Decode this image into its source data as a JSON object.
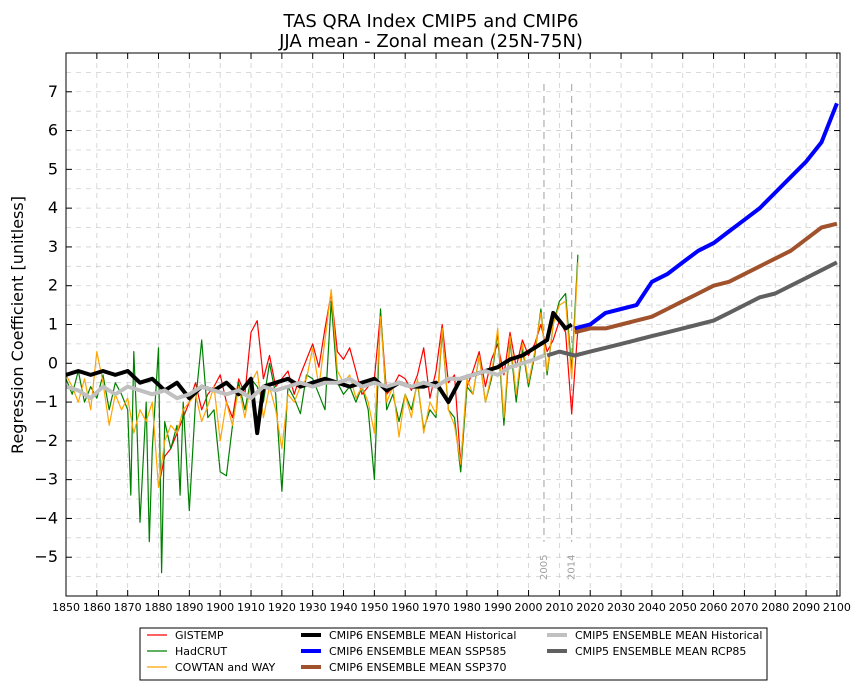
{
  "chart_data": {
    "type": "line",
    "title": "TAS QRA Index CMIP5 and CMIP6",
    "subtitle": "JJA mean - Zonal mean (25N-75N)",
    "xlabel": "",
    "ylabel": "Regression Coefficient [unitless]",
    "xlim": [
      1850,
      2101
    ],
    "ylim": [
      -6,
      8
    ],
    "grid": true,
    "legend_position": "bottom-center",
    "xticks": [
      "1850",
      "1860",
      "1870",
      "1880",
      "1890",
      "1900",
      "1910",
      "1920",
      "1930",
      "1940",
      "1950",
      "1960",
      "1970",
      "1980",
      "1990",
      "2000",
      "2010",
      "2020",
      "2030",
      "2040",
      "2050",
      "2060",
      "2070",
      "2080",
      "2090",
      "2100"
    ],
    "yticks": [
      "−5",
      "−4",
      "−3",
      "−2",
      "−1",
      "0",
      "1",
      "2",
      "3",
      "4",
      "5",
      "6",
      "7"
    ],
    "annotations": [
      {
        "x": 2005,
        "label": "2005"
      },
      {
        "x": 2014,
        "label": "2014"
      }
    ],
    "series": [
      {
        "name": "GISTEMP",
        "color": "#ff0000",
        "width": 1.2,
        "x": [
          1880,
          1882,
          1884,
          1886,
          1888,
          1890,
          1892,
          1894,
          1896,
          1898,
          1900,
          1902,
          1904,
          1906,
          1908,
          1910,
          1912,
          1914,
          1916,
          1918,
          1920,
          1922,
          1924,
          1926,
          1928,
          1930,
          1932,
          1934,
          1936,
          1938,
          1940,
          1942,
          1944,
          1946,
          1948,
          1950,
          1952,
          1954,
          1956,
          1958,
          1960,
          1962,
          1964,
          1966,
          1968,
          1970,
          1972,
          1974,
          1976,
          1978,
          1980,
          1982,
          1984,
          1986,
          1988,
          1990,
          1992,
          1994,
          1996,
          1998,
          2000,
          2002,
          2004,
          2006,
          2008,
          2010,
          2012,
          2014,
          2016
        ],
        "y": [
          -3.2,
          -2.4,
          -2.2,
          -1.8,
          -1.4,
          -1.0,
          -0.5,
          -1.2,
          -0.8,
          -0.6,
          -0.3,
          -1.0,
          -1.4,
          -0.4,
          -0.8,
          0.8,
          1.1,
          -0.4,
          0.2,
          -0.6,
          -0.4,
          -0.2,
          -0.8,
          -0.3,
          0.1,
          0.5,
          -0.1,
          0.9,
          1.8,
          0.3,
          0.1,
          0.4,
          -0.2,
          -0.8,
          -0.6,
          -0.4,
          1.3,
          -0.8,
          -0.6,
          -0.3,
          -0.4,
          -0.7,
          -0.3,
          0.4,
          -0.9,
          -0.2,
          1.0,
          -0.5,
          -0.3,
          -2.6,
          -0.6,
          -0.2,
          0.3,
          -0.6,
          0.1,
          0.5,
          -0.3,
          0.8,
          -0.1,
          0.6,
          0.2,
          0.5,
          1.0,
          0.3,
          0.6,
          1.1,
          0.8,
          -1.3,
          0.9
        ]
      },
      {
        "name": "HadCRUT",
        "color": "#008000",
        "width": 1.2,
        "x": [
          1850,
          1852,
          1854,
          1856,
          1858,
          1860,
          1862,
          1864,
          1866,
          1868,
          1870,
          1871,
          1872,
          1873,
          1874,
          1876,
          1877,
          1878,
          1880,
          1881,
          1882,
          1884,
          1886,
          1887,
          1888,
          1890,
          1892,
          1894,
          1896,
          1898,
          1900,
          1902,
          1904,
          1906,
          1908,
          1910,
          1912,
          1914,
          1916,
          1918,
          1920,
          1922,
          1924,
          1926,
          1928,
          1930,
          1932,
          1934,
          1936,
          1938,
          1940,
          1942,
          1944,
          1946,
          1948,
          1950,
          1952,
          1954,
          1956,
          1958,
          1960,
          1962,
          1964,
          1966,
          1968,
          1970,
          1972,
          1974,
          1976,
          1978,
          1980,
          1982,
          1984,
          1986,
          1988,
          1990,
          1992,
          1994,
          1996,
          1998,
          2000,
          2002,
          2004,
          2006,
          2008,
          2010,
          2012,
          2014,
          2016
        ],
        "y": [
          -0.4,
          -0.8,
          -0.2,
          -1.0,
          -0.6,
          -0.9,
          -0.3,
          -1.2,
          -0.5,
          -0.8,
          -1.2,
          -3.4,
          0.3,
          -1.6,
          -4.1,
          -1.0,
          -4.6,
          -2.2,
          0.4,
          -5.4,
          -1.5,
          -2.2,
          -1.6,
          -3.4,
          -1.0,
          -3.8,
          -1.0,
          0.6,
          -1.4,
          -1.2,
          -2.8,
          -2.9,
          -1.6,
          -0.5,
          -1.2,
          -0.4,
          -0.6,
          -1.0,
          0.0,
          -0.8,
          -3.3,
          -0.6,
          -0.9,
          -1.3,
          -0.3,
          -0.4,
          -0.8,
          -1.2,
          1.6,
          -0.5,
          -0.8,
          -0.6,
          -1.0,
          -0.6,
          -1.2,
          -3.0,
          1.4,
          -1.2,
          -0.8,
          -1.5,
          -0.8,
          -1.2,
          -0.5,
          -1.7,
          -1.2,
          -1.4,
          0.8,
          -1.2,
          -1.4,
          -2.8,
          -0.6,
          -0.8,
          0.2,
          -1.0,
          -0.4,
          0.8,
          -1.6,
          0.6,
          -1.0,
          0.4,
          -0.6,
          0.2,
          1.4,
          -0.3,
          1.0,
          1.6,
          1.8,
          -0.2,
          2.8
        ]
      },
      {
        "name": "COWTAN and WAY",
        "color": "#ffa500",
        "width": 1.2,
        "x": [
          1850,
          1852,
          1854,
          1856,
          1858,
          1860,
          1862,
          1864,
          1866,
          1868,
          1870,
          1872,
          1874,
          1876,
          1878,
          1880,
          1882,
          1884,
          1886,
          1888,
          1890,
          1892,
          1894,
          1896,
          1898,
          1900,
          1902,
          1904,
          1906,
          1908,
          1910,
          1912,
          1914,
          1916,
          1918,
          1920,
          1922,
          1924,
          1926,
          1928,
          1930,
          1932,
          1934,
          1936,
          1938,
          1940,
          1942,
          1944,
          1946,
          1948,
          1950,
          1952,
          1954,
          1956,
          1958,
          1960,
          1962,
          1964,
          1966,
          1968,
          1970,
          1972,
          1974,
          1976,
          1978,
          1980,
          1982,
          1984,
          1986,
          1988,
          1990,
          1992,
          1994,
          1996,
          1998,
          2000,
          2002,
          2004,
          2006,
          2008,
          2010,
          2012,
          2014,
          2016
        ],
        "y": [
          -0.3,
          -0.6,
          -1.0,
          -0.4,
          -1.2,
          0.3,
          -0.5,
          -1.6,
          -0.8,
          -1.2,
          -0.9,
          -1.8,
          -1.2,
          -1.5,
          -1.0,
          -3.2,
          -2.0,
          -1.6,
          -1.8,
          -1.2,
          -1.0,
          -0.8,
          -1.5,
          -1.1,
          -0.6,
          -2.0,
          -1.0,
          -1.6,
          -0.6,
          -1.4,
          -0.5,
          -0.2,
          -1.4,
          -0.6,
          -1.2,
          -2.2,
          -0.8,
          -1.0,
          -0.6,
          -0.4,
          0.4,
          -0.6,
          0.6,
          1.9,
          -0.2,
          -0.5,
          -0.3,
          -0.9,
          -0.6,
          -1.0,
          -1.8,
          1.2,
          -1.0,
          -0.6,
          -1.9,
          -0.8,
          -1.4,
          -0.4,
          -1.8,
          -1.0,
          -1.3,
          0.9,
          -1.2,
          -1.6,
          -2.6,
          -0.4,
          -0.8,
          0.2,
          -1.0,
          -0.3,
          0.9,
          -1.4,
          0.7,
          -0.8,
          0.5,
          -0.5,
          0.3,
          1.3,
          -0.2,
          1.0,
          1.5,
          1.6,
          -0.4,
          2.6
        ]
      },
      {
        "name": "CMIP6 ENSEMBLE MEAN Historical",
        "color": "#000000",
        "width": 4,
        "x": [
          1850,
          1854,
          1858,
          1862,
          1866,
          1870,
          1874,
          1878,
          1882,
          1886,
          1890,
          1894,
          1898,
          1902,
          1906,
          1910,
          1912,
          1914,
          1918,
          1922,
          1926,
          1930,
          1934,
          1938,
          1942,
          1946,
          1950,
          1954,
          1958,
          1962,
          1966,
          1970,
          1974,
          1978,
          1982,
          1986,
          1990,
          1994,
          1998,
          2002,
          2006,
          2008,
          2010,
          2012,
          2014
        ],
        "y": [
          -0.3,
          -0.2,
          -0.3,
          -0.2,
          -0.3,
          -0.2,
          -0.5,
          -0.4,
          -0.7,
          -0.5,
          -0.9,
          -0.6,
          -0.7,
          -0.5,
          -0.8,
          -0.4,
          -1.8,
          -0.6,
          -0.5,
          -0.4,
          -0.6,
          -0.5,
          -0.4,
          -0.5,
          -0.6,
          -0.5,
          -0.4,
          -0.7,
          -0.5,
          -0.6,
          -0.6,
          -0.5,
          -1.0,
          -0.4,
          -0.3,
          -0.2,
          -0.1,
          0.1,
          0.2,
          0.4,
          0.6,
          1.3,
          1.1,
          0.9,
          1.0
        ]
      },
      {
        "name": "CMIP6 ENSEMBLE MEAN SSP585",
        "color": "#0000ff",
        "width": 4,
        "x": [
          2015,
          2020,
          2025,
          2030,
          2035,
          2040,
          2045,
          2050,
          2055,
          2060,
          2065,
          2070,
          2075,
          2080,
          2085,
          2090,
          2095,
          2100
        ],
        "y": [
          0.9,
          1.0,
          1.3,
          1.4,
          1.5,
          2.1,
          2.3,
          2.6,
          2.9,
          3.1,
          3.4,
          3.7,
          4.0,
          4.4,
          4.8,
          5.2,
          5.7,
          6.7
        ]
      },
      {
        "name": "CMIP6 ENSEMBLE MEAN SSP370",
        "color": "#a0522d",
        "width": 4,
        "x": [
          2015,
          2020,
          2025,
          2030,
          2035,
          2040,
          2045,
          2050,
          2055,
          2060,
          2065,
          2070,
          2075,
          2080,
          2085,
          2090,
          2095,
          2100
        ],
        "y": [
          0.8,
          0.9,
          0.9,
          1.0,
          1.1,
          1.2,
          1.4,
          1.6,
          1.8,
          2.0,
          2.1,
          2.3,
          2.5,
          2.7,
          2.9,
          3.2,
          3.5,
          3.6
        ]
      },
      {
        "name": "CMIP5 ENSEMBLE MEAN Historical",
        "color": "#c0c0c0",
        "width": 4,
        "x": [
          1850,
          1854,
          1858,
          1862,
          1866,
          1870,
          1874,
          1878,
          1882,
          1886,
          1890,
          1894,
          1898,
          1902,
          1906,
          1910,
          1914,
          1918,
          1922,
          1926,
          1930,
          1934,
          1938,
          1942,
          1946,
          1950,
          1954,
          1958,
          1962,
          1966,
          1970,
          1974,
          1978,
          1982,
          1986,
          1990,
          1994,
          1998,
          2002,
          2005
        ],
        "y": [
          -0.6,
          -0.7,
          -0.9,
          -0.6,
          -0.8,
          -0.6,
          -0.7,
          -0.8,
          -0.7,
          -0.9,
          -0.8,
          -0.6,
          -0.7,
          -0.8,
          -0.7,
          -0.9,
          -0.6,
          -0.7,
          -0.6,
          -0.5,
          -0.6,
          -0.5,
          -0.5,
          -0.4,
          -0.6,
          -0.5,
          -0.6,
          -0.5,
          -0.6,
          -0.5,
          -0.6,
          -0.4,
          -0.4,
          -0.3,
          -0.2,
          -0.3,
          -0.1,
          0.0,
          0.1,
          0.2
        ]
      },
      {
        "name": "CMIP5 ENSEMBLE MEAN RCP85",
        "color": "#606060",
        "width": 4,
        "x": [
          2006,
          2010,
          2015,
          2020,
          2025,
          2030,
          2035,
          2040,
          2045,
          2050,
          2055,
          2060,
          2065,
          2070,
          2075,
          2080,
          2085,
          2090,
          2095,
          2100
        ],
        "y": [
          0.2,
          0.3,
          0.2,
          0.3,
          0.4,
          0.5,
          0.6,
          0.7,
          0.8,
          0.9,
          1.0,
          1.1,
          1.3,
          1.5,
          1.7,
          1.8,
          2.0,
          2.2,
          2.4,
          2.6
        ]
      }
    ]
  }
}
